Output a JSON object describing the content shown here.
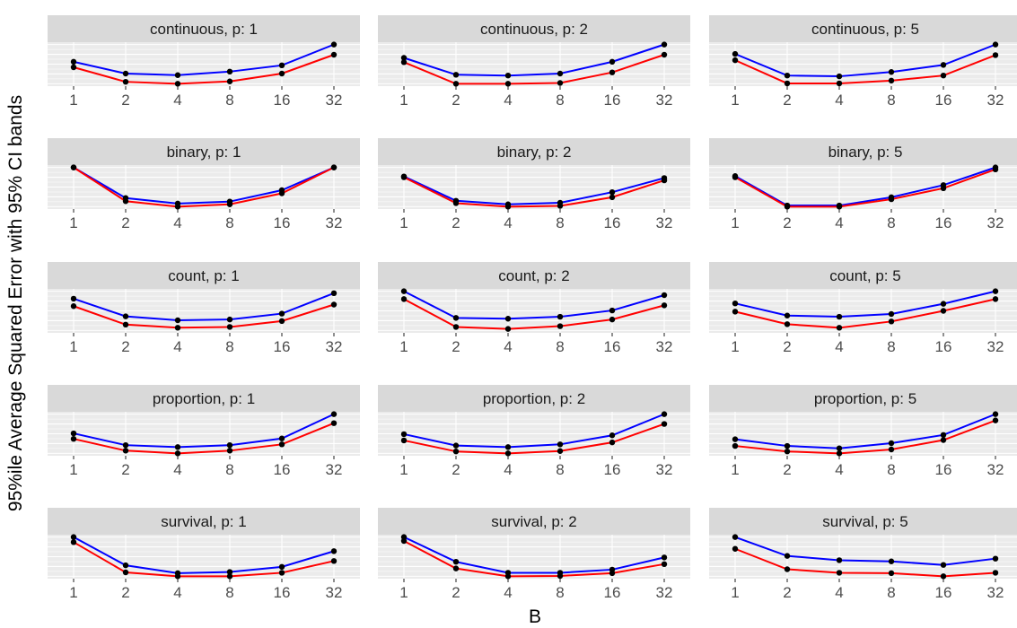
{
  "chart_data": {
    "type": "line",
    "xlabel": "B",
    "ylabel": "95%ile Average Squared Error with 95% CI bands",
    "x": [
      "1",
      "2",
      "4",
      "8",
      "16",
      "32"
    ],
    "series_colors": [
      "#0000ff",
      "#ff0000"
    ],
    "point_color": "#000000",
    "panel_bg": "#ebebeb",
    "strip_bg": "#d9d9d9",
    "grid_color": "#ffffff",
    "facets": [
      {
        "label": "continuous, p: 1",
        "series": [
          {
            "values": [
              0.56,
              0.26,
              0.22,
              0.31,
              0.47,
              1.0
            ]
          },
          {
            "values": [
              0.42,
              0.05,
              0.0,
              0.06,
              0.26,
              0.74
            ]
          }
        ]
      },
      {
        "label": "continuous, p: 2",
        "series": [
          {
            "values": [
              0.66,
              0.23,
              0.21,
              0.26,
              0.56,
              1.0
            ]
          },
          {
            "values": [
              0.55,
              0.0,
              0.0,
              0.02,
              0.29,
              0.74
            ]
          }
        ]
      },
      {
        "label": "continuous, p: 5",
        "series": [
          {
            "values": [
              0.76,
              0.21,
              0.19,
              0.3,
              0.48,
              1.0
            ]
          },
          {
            "values": [
              0.6,
              0.01,
              0.01,
              0.08,
              0.21,
              0.73
            ]
          }
        ]
      },
      {
        "label": "binary, p: 1",
        "series": [
          {
            "values": [
              1.0,
              0.22,
              0.08,
              0.13,
              0.42,
              1.0
            ]
          },
          {
            "values": [
              1.0,
              0.14,
              0.0,
              0.06,
              0.34,
              1.0
            ]
          }
        ]
      },
      {
        "label": "binary, p: 2",
        "series": [
          {
            "values": [
              0.77,
              0.15,
              0.06,
              0.1,
              0.37,
              0.73
            ]
          },
          {
            "values": [
              0.75,
              0.09,
              0.0,
              0.02,
              0.24,
              0.67
            ]
          }
        ]
      },
      {
        "label": "binary, p: 5",
        "series": [
          {
            "values": [
              0.78,
              0.03,
              0.03,
              0.24,
              0.55,
              1.0
            ]
          },
          {
            "values": [
              0.75,
              0.0,
              0.0,
              0.19,
              0.47,
              0.95
            ]
          }
        ]
      },
      {
        "label": "count, p: 1",
        "series": [
          {
            "values": [
              0.81,
              0.36,
              0.26,
              0.28,
              0.43,
              0.95
            ]
          },
          {
            "values": [
              0.62,
              0.15,
              0.07,
              0.09,
              0.24,
              0.66
            ]
          }
        ]
      },
      {
        "label": "count, p: 2",
        "series": [
          {
            "values": [
              1.0,
              0.32,
              0.3,
              0.35,
              0.51,
              0.9
            ]
          },
          {
            "values": [
              0.8,
              0.09,
              0.04,
              0.11,
              0.28,
              0.64
            ]
          }
        ]
      },
      {
        "label": "count, p: 5",
        "series": [
          {
            "values": [
              0.69,
              0.38,
              0.35,
              0.42,
              0.68,
              1.0
            ]
          },
          {
            "values": [
              0.48,
              0.16,
              0.07,
              0.23,
              0.5,
              0.8
            ]
          }
        ]
      },
      {
        "label": "proportion, p: 1",
        "series": [
          {
            "values": [
              0.51,
              0.21,
              0.16,
              0.21,
              0.38,
              1.0
            ]
          },
          {
            "values": [
              0.37,
              0.07,
              0.0,
              0.07,
              0.23,
              0.77
            ]
          }
        ]
      },
      {
        "label": "proportion, p: 2",
        "series": [
          {
            "values": [
              0.49,
              0.2,
              0.16,
              0.23,
              0.46,
              1.0
            ]
          },
          {
            "values": [
              0.33,
              0.05,
              0.0,
              0.06,
              0.28,
              0.75
            ]
          }
        ]
      },
      {
        "label": "proportion, p: 5",
        "series": [
          {
            "values": [
              0.36,
              0.19,
              0.13,
              0.26,
              0.47,
              1.0
            ]
          },
          {
            "values": [
              0.19,
              0.05,
              0.0,
              0.1,
              0.34,
              0.84
            ]
          }
        ]
      },
      {
        "label": "survival, p: 1",
        "series": [
          {
            "values": [
              1.0,
              0.28,
              0.08,
              0.11,
              0.24,
              0.64
            ]
          },
          {
            "values": [
              0.87,
              0.1,
              0.0,
              0.0,
              0.09,
              0.39
            ]
          }
        ]
      },
      {
        "label": "survival, p: 2",
        "series": [
          {
            "values": [
              1.0,
              0.37,
              0.09,
              0.09,
              0.17,
              0.48
            ]
          },
          {
            "values": [
              0.9,
              0.2,
              0.0,
              0.01,
              0.08,
              0.31
            ]
          }
        ]
      },
      {
        "label": "survival, p: 5",
        "series": [
          {
            "values": [
              1.0,
              0.52,
              0.41,
              0.38,
              0.29,
              0.45
            ]
          },
          {
            "values": [
              0.7,
              0.18,
              0.09,
              0.08,
              0.0,
              0.09
            ]
          }
        ]
      }
    ]
  }
}
